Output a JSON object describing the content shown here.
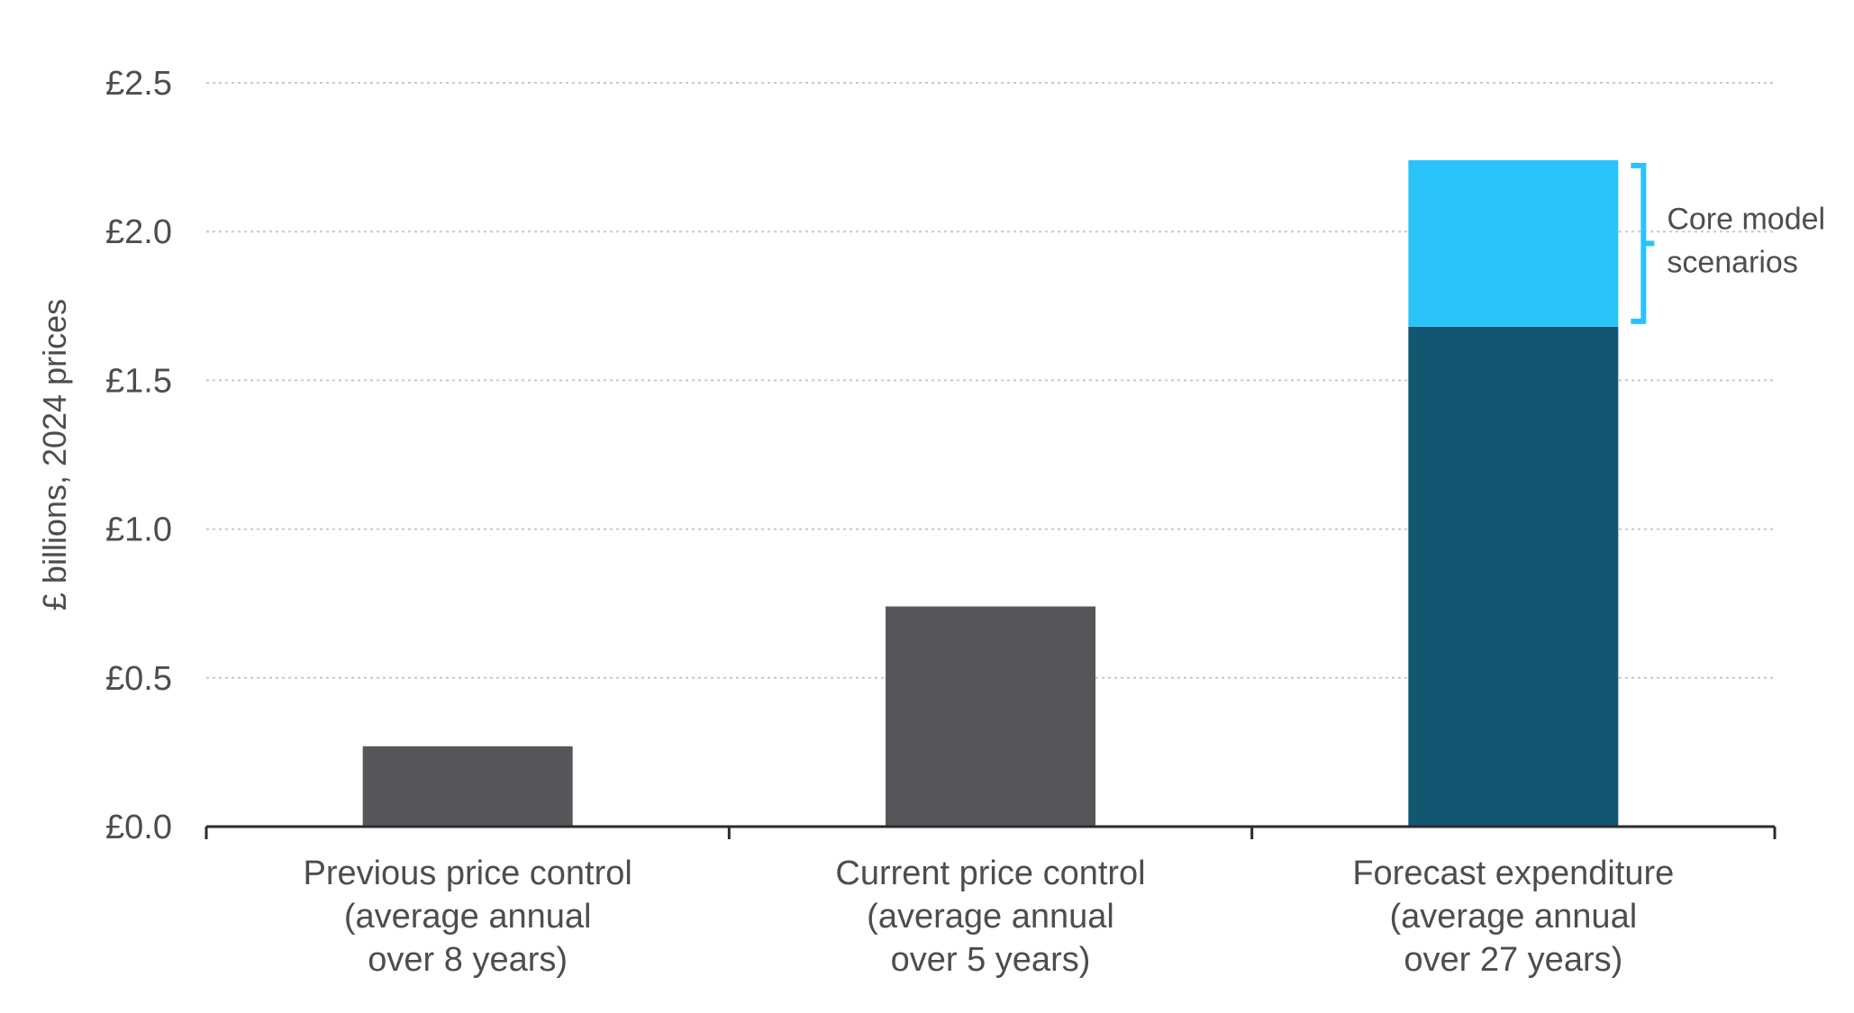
{
  "chart_data": {
    "type": "bar",
    "title": "",
    "xlabel": "",
    "ylabel": "£ billions, 2024 prices",
    "ylim": [
      0,
      2.5
    ],
    "yticks": [
      0.0,
      0.5,
      1.0,
      1.5,
      2.0,
      2.5
    ],
    "ytick_labels": [
      "£0.0",
      "£0.5",
      "£1.0",
      "£1.5",
      "£2.0",
      "£2.5"
    ],
    "grid": "horizontal dotted",
    "categories": [
      [
        "Previous price control",
        "(average annual",
        "over 8 years)"
      ],
      [
        "Current price control",
        "(average annual",
        "over 5 years)"
      ],
      [
        "Forecast expenditure",
        "(average annual",
        "over 27 years)"
      ]
    ],
    "series": [
      {
        "values": [
          0.27,
          0.74,
          1.68
        ],
        "colors": [
          "#56575b",
          "#56575b",
          "#135672"
        ]
      },
      {
        "values": [
          0,
          0,
          0.56
        ],
        "colors": [
          "#29c3fa",
          "#29c3fa",
          "#29c3fa"
        ]
      }
    ],
    "annotations": [
      {
        "text_lines": [
          "Core model",
          "scenarios"
        ],
        "category_index": 2,
        "range": [
          1.68,
          2.24
        ],
        "bracket_color": "#29c3fa"
      }
    ]
  }
}
